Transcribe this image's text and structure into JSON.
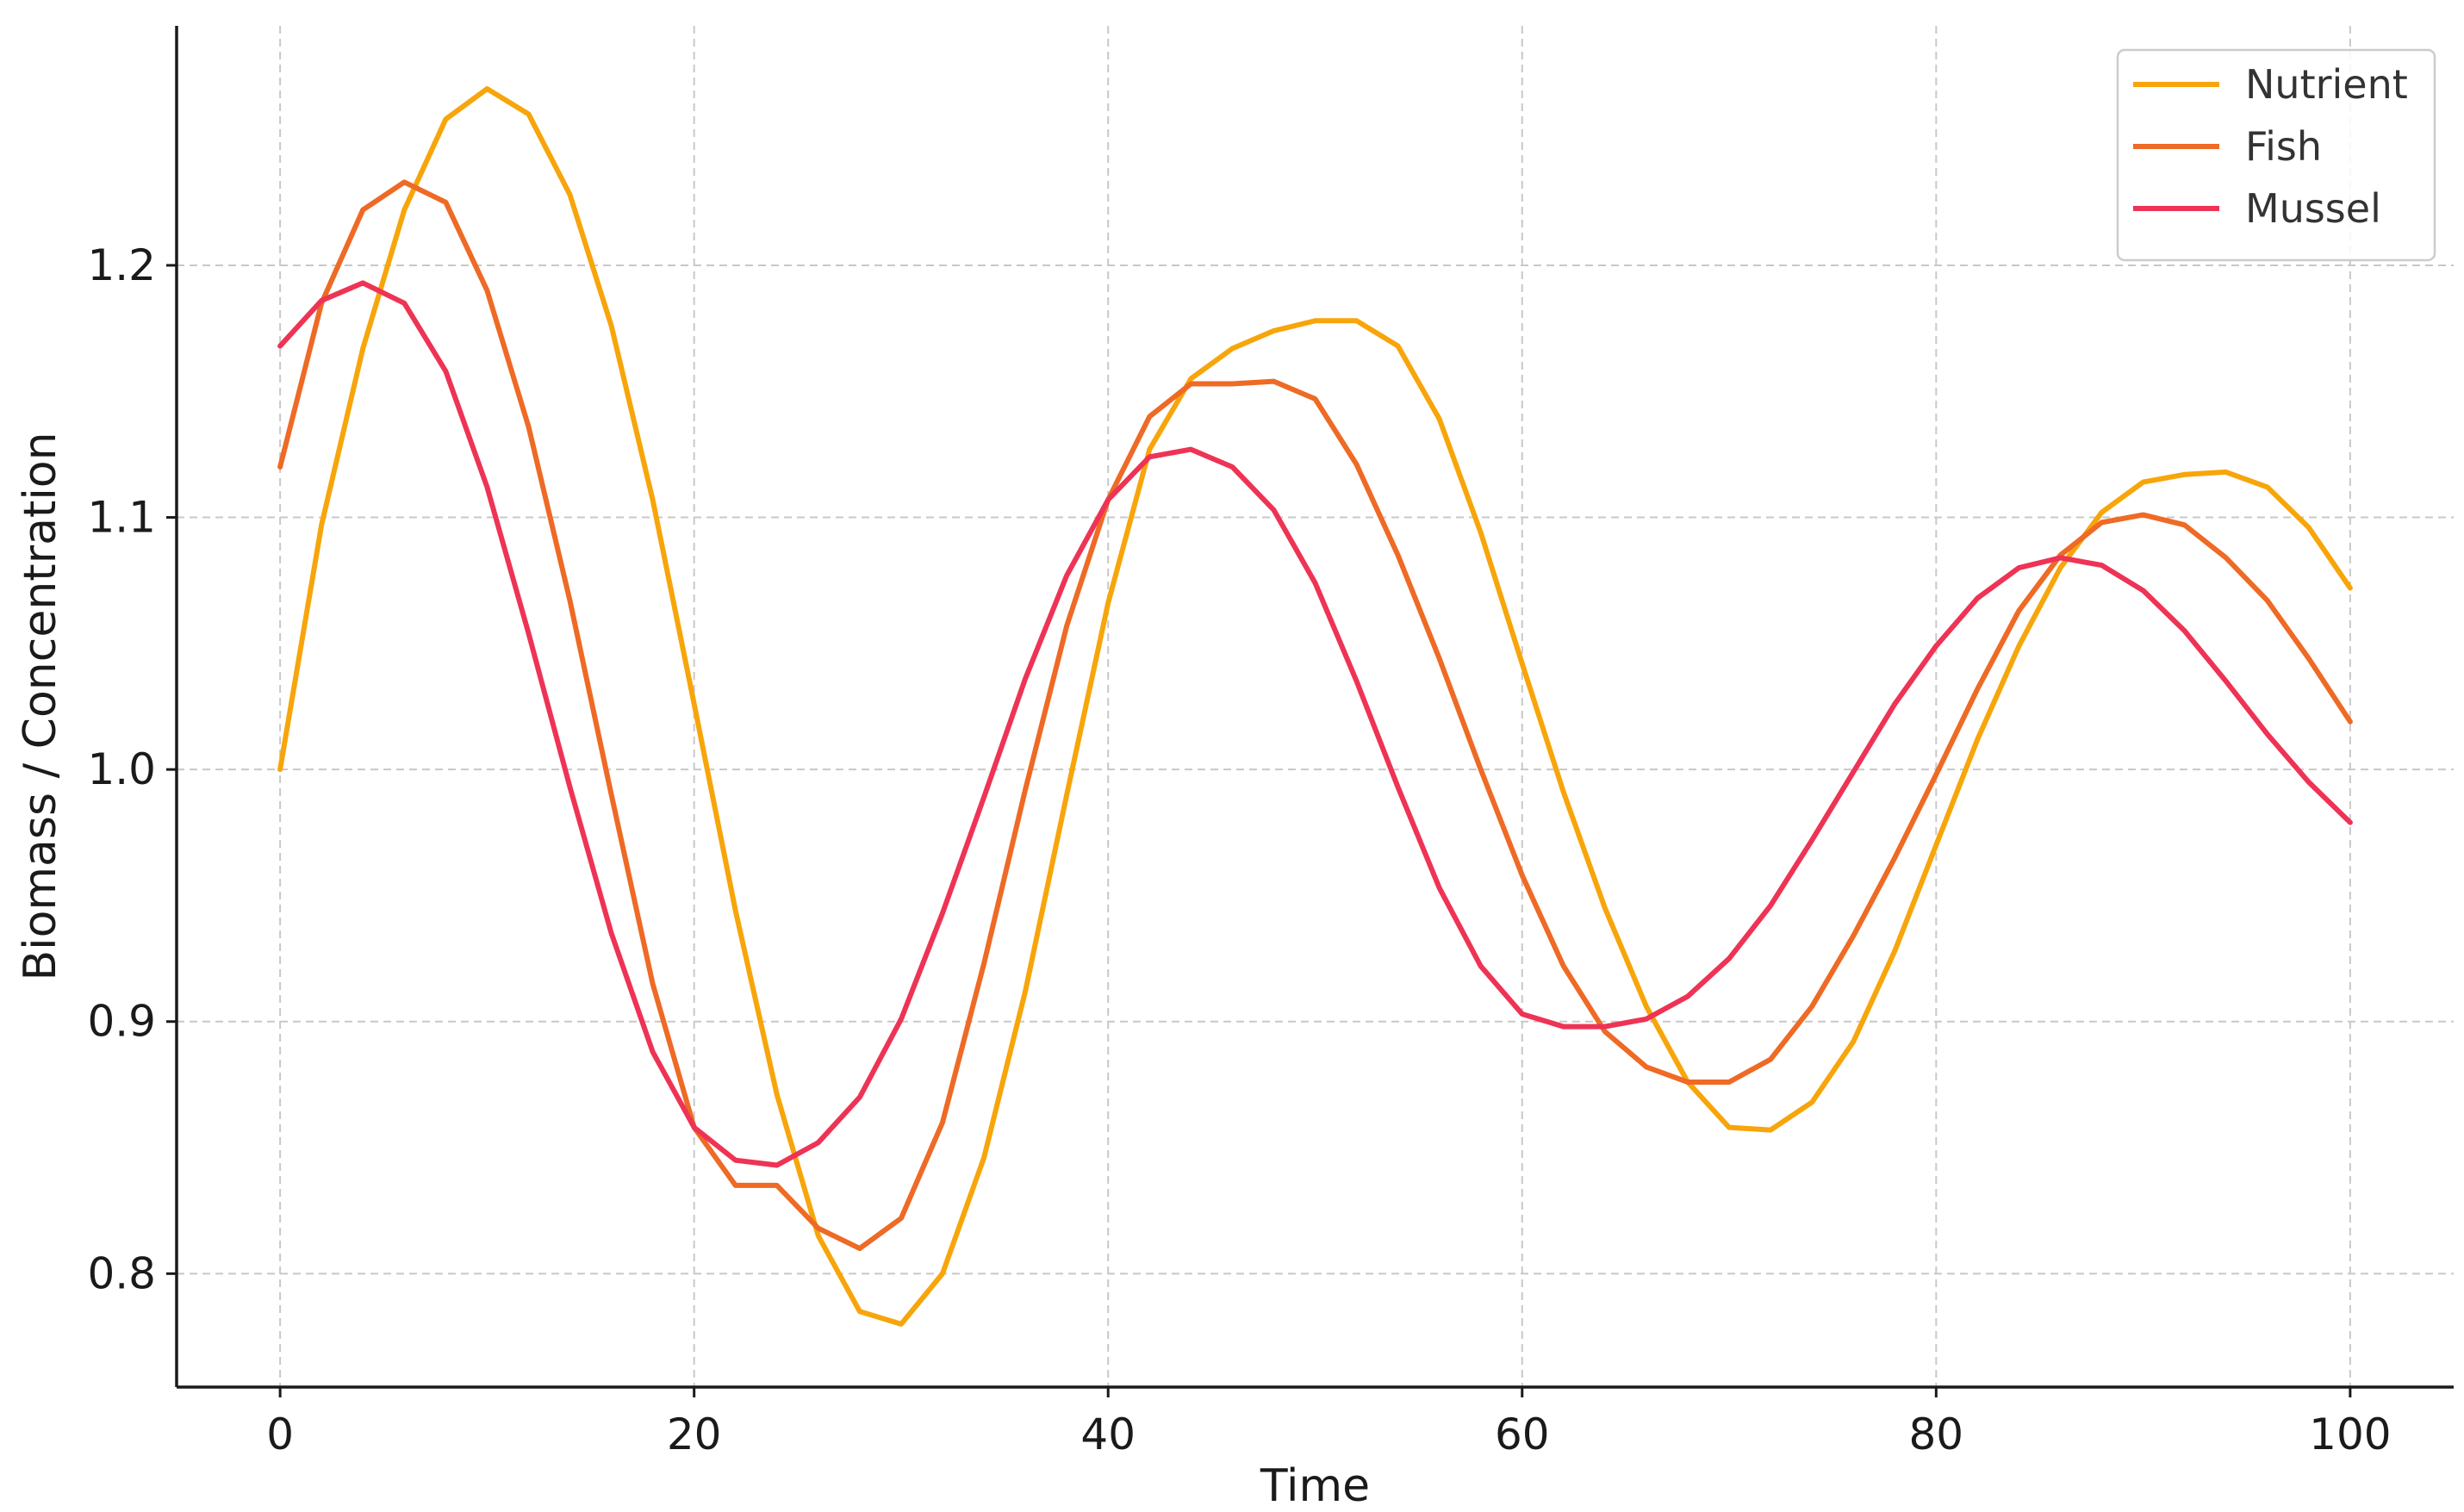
{
  "chart_data": {
    "type": "line",
    "title": "",
    "xlabel": "Time",
    "ylabel": "Biomass / Concentration",
    "xlim": [
      -5,
      105
    ],
    "ylim": [
      0.755,
      1.295
    ],
    "xticks": [
      0,
      20,
      40,
      60,
      80,
      100
    ],
    "yticks": [
      0.8,
      0.9,
      1.0,
      1.1,
      1.2
    ],
    "xtick_labels": [
      "0",
      "20",
      "40",
      "60",
      "80",
      "100"
    ],
    "ytick_labels": [
      "0.8",
      "0.9",
      "1.0",
      "1.1",
      "1.2"
    ],
    "grid": true,
    "legend_position": "top-right",
    "series": [
      {
        "name": "Nutrient",
        "color": "#F7A50A",
        "x": [
          0,
          2,
          4,
          6,
          8,
          10,
          12,
          14,
          16,
          18,
          20,
          22,
          24,
          26,
          28,
          30,
          32,
          34,
          36,
          38,
          40,
          42,
          44,
          46,
          48,
          50,
          52,
          54,
          56,
          58,
          60,
          62,
          64,
          66,
          68,
          70,
          72,
          74,
          76,
          78,
          80,
          82,
          84,
          86,
          88,
          90,
          92,
          94,
          96,
          98,
          100
        ],
        "values": [
          1.0,
          1.097,
          1.167,
          1.222,
          1.258,
          1.27,
          1.26,
          1.228,
          1.176,
          1.107,
          1.026,
          0.944,
          0.871,
          0.815,
          0.785,
          0.78,
          0.8,
          0.846,
          0.912,
          0.99,
          1.066,
          1.127,
          1.155,
          1.167,
          1.174,
          1.178,
          1.178,
          1.168,
          1.139,
          1.094,
          1.042,
          0.991,
          0.945,
          0.906,
          0.876,
          0.858,
          0.857,
          0.868,
          0.892,
          0.928,
          0.97,
          1.012,
          1.049,
          1.08,
          1.102,
          1.114,
          1.117,
          1.118,
          1.112,
          1.096,
          1.072
        ]
      },
      {
        "name": "Fish",
        "color": "#EE6A25",
        "x": [
          0,
          2,
          4,
          6,
          8,
          10,
          12,
          14,
          16,
          18,
          20,
          22,
          24,
          26,
          28,
          30,
          32,
          34,
          36,
          38,
          40,
          42,
          44,
          46,
          48,
          50,
          52,
          54,
          56,
          58,
          60,
          62,
          64,
          66,
          68,
          70,
          72,
          74,
          76,
          78,
          80,
          82,
          84,
          86,
          88,
          90,
          92,
          94,
          96,
          98,
          100
        ],
        "values": [
          1.12,
          1.185,
          1.222,
          1.233,
          1.225,
          1.19,
          1.136,
          1.067,
          0.99,
          0.915,
          0.858,
          0.835,
          0.835,
          0.818,
          0.81,
          0.822,
          0.86,
          0.923,
          0.992,
          1.057,
          1.107,
          1.14,
          1.153,
          1.153,
          1.154,
          1.147,
          1.121,
          1.085,
          1.044,
          1.0,
          0.958,
          0.922,
          0.896,
          0.882,
          0.876,
          0.876,
          0.885,
          0.906,
          0.934,
          0.965,
          0.998,
          1.032,
          1.063,
          1.085,
          1.098,
          1.101,
          1.097,
          1.084,
          1.067,
          1.044,
          1.019
        ]
      },
      {
        "name": "Mussel",
        "color": "#EE3355",
        "x": [
          0,
          2,
          4,
          6,
          8,
          10,
          12,
          14,
          16,
          18,
          20,
          22,
          24,
          26,
          28,
          30,
          32,
          34,
          36,
          38,
          40,
          42,
          44,
          46,
          48,
          50,
          52,
          54,
          56,
          58,
          60,
          62,
          64,
          66,
          68,
          70,
          72,
          74,
          76,
          78,
          80,
          82,
          84,
          86,
          88,
          90,
          92,
          94,
          96,
          98,
          100
        ],
        "values": [
          1.168,
          1.186,
          1.193,
          1.185,
          1.158,
          1.112,
          1.054,
          0.993,
          0.935,
          0.888,
          0.858,
          0.845,
          0.843,
          0.852,
          0.87,
          0.901,
          0.943,
          0.989,
          1.036,
          1.077,
          1.107,
          1.124,
          1.127,
          1.12,
          1.103,
          1.074,
          1.035,
          0.993,
          0.953,
          0.922,
          0.903,
          0.898,
          0.898,
          0.901,
          0.91,
          0.925,
          0.946,
          0.972,
          0.999,
          1.026,
          1.049,
          1.068,
          1.08,
          1.084,
          1.081,
          1.071,
          1.055,
          1.035,
          1.014,
          0.995,
          0.979
        ]
      }
    ]
  }
}
